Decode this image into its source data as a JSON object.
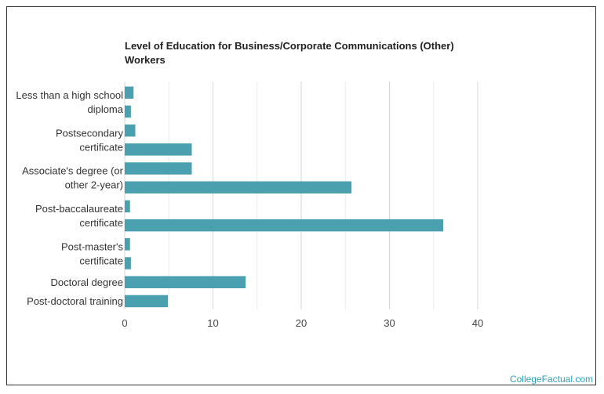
{
  "chart_data": {
    "type": "bar",
    "orientation": "horizontal",
    "title_lines": [
      "Level of Education for Business/Corporate Communications (Other)",
      "Workers"
    ],
    "xlabel": "",
    "ylabel": "",
    "xlim": [
      0,
      40
    ],
    "x_ticks": [
      0,
      10,
      20,
      30,
      40
    ],
    "grid": true,
    "bar_color": "#4aa0ae",
    "values": [
      1.0,
      0.7,
      1.2,
      7.6,
      7.6,
      25.7,
      0.6,
      36.1,
      0.6,
      0.7,
      13.7,
      4.9
    ],
    "category_labels": [
      {
        "lines": [
          "Less than a high school",
          "diploma"
        ]
      },
      {
        "lines": [
          "Postsecondary",
          "certificate"
        ]
      },
      {
        "lines": [
          "Associate's degree (or",
          "other 2-year)"
        ]
      },
      {
        "lines": [
          "Post-baccalaureate",
          "certificate"
        ]
      },
      {
        "lines": [
          "Post-master's",
          "certificate"
        ]
      },
      {
        "lines": [
          "Doctoral degree"
        ]
      },
      {
        "lines": [
          "Post-doctoral training"
        ]
      }
    ]
  },
  "credit": "CollegeFactual.com"
}
